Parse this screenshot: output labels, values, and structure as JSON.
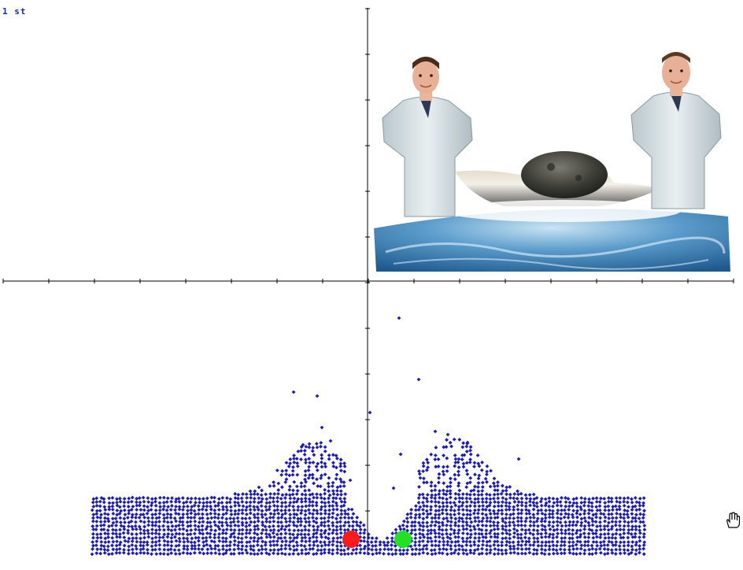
{
  "status": {
    "step_label": "1 st"
  },
  "cursor": {
    "icon": "hand-pan-icon"
  },
  "illustration": {
    "description_icon": "scientists-asteroid-impact-illustration"
  },
  "simulation": {
    "particle_color": "#1a1ab8",
    "ball_left_color": "#ff1a1a",
    "ball_right_color": "#22e022",
    "axis_color": "#000000"
  }
}
